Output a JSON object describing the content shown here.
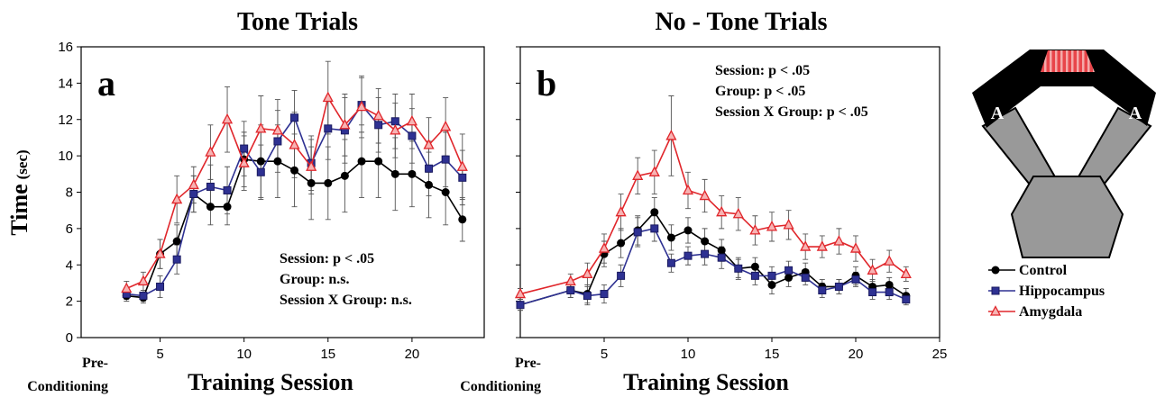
{
  "chart_data": [
    {
      "type": "line",
      "title": "Tone Trials",
      "letter": "a",
      "ylabel": "Time",
      "ylabel_unit": "(sec)",
      "xlabel": "Training Session",
      "x_start_label": [
        "Pre-",
        "Conditioning"
      ],
      "annotations": [
        "Session: p < .05",
        "Group: n.s.",
        "Session X Group: n.s."
      ],
      "xlim": [
        0.3,
        24.3
      ],
      "xticks": [
        5,
        10,
        15,
        20
      ],
      "ylim": [
        0,
        16
      ],
      "yticks": [
        0,
        2,
        4,
        6,
        8,
        10,
        12,
        14,
        16
      ],
      "ytick_labels": true,
      "x": [
        3,
        4,
        5,
        6,
        7,
        8,
        9,
        10,
        11,
        12,
        13,
        14,
        15,
        16,
        17,
        18,
        19,
        20,
        21,
        22,
        23
      ],
      "series": [
        {
          "name": "Control",
          "color": "#000000",
          "marker": "circle",
          "values": [
            2.3,
            2.2,
            4.6,
            5.3,
            7.9,
            7.2,
            7.2,
            9.8,
            9.7,
            9.7,
            9.2,
            8.5,
            8.5,
            8.9,
            9.7,
            9.7,
            9.0,
            9.0,
            8.4,
            8.0,
            6.5
          ],
          "errors": [
            0.3,
            0.3,
            0.8,
            0.9,
            1.0,
            1.0,
            1.0,
            1.5,
            2.0,
            2.0,
            2.0,
            2.0,
            2.0,
            2.0,
            2.0,
            2.0,
            2.0,
            1.8,
            1.8,
            1.8,
            1.2
          ]
        },
        {
          "name": "Hippocampus",
          "color": "#2e3192",
          "marker": "square",
          "values": [
            2.4,
            2.3,
            2.8,
            4.3,
            7.9,
            8.3,
            8.1,
            10.4,
            9.1,
            10.8,
            12.1,
            9.6,
            11.5,
            11.4,
            12.8,
            11.7,
            11.9,
            11.1,
            9.3,
            9.8,
            8.8
          ],
          "errors": [
            0.3,
            0.3,
            0.6,
            0.8,
            1.0,
            1.2,
            1.3,
            1.5,
            1.5,
            1.7,
            1.5,
            1.5,
            1.7,
            1.8,
            1.5,
            1.5,
            1.5,
            1.5,
            1.5,
            1.5,
            1.5
          ]
        },
        {
          "name": "Amygdala",
          "color": "#e0262b",
          "marker": "triangle",
          "values": [
            2.7,
            3.1,
            4.6,
            7.6,
            8.4,
            10.2,
            12.0,
            9.6,
            11.5,
            11.4,
            10.6,
            9.4,
            13.2,
            11.7,
            12.7,
            12.2,
            11.4,
            11.9,
            10.6,
            11.6,
            9.4
          ],
          "errors": [
            0.4,
            0.5,
            0.8,
            1.3,
            1.0,
            1.5,
            1.8,
            1.5,
            1.8,
            1.7,
            1.8,
            1.5,
            2.0,
            1.7,
            1.7,
            1.5,
            1.5,
            1.5,
            1.5,
            1.6,
            1.8
          ]
        }
      ]
    },
    {
      "type": "line",
      "title": "No - Tone Trials",
      "letter": "b",
      "xlabel": "Training Session",
      "x_start_label": [
        "Pre-",
        "Conditioning"
      ],
      "annotations": [
        "Session: p < .05",
        "Group: p < .05",
        "Session X Group: p < .05"
      ],
      "xlim": [
        0,
        25
      ],
      "xticks": [
        5,
        10,
        15,
        20,
        25
      ],
      "ylim": [
        0,
        16
      ],
      "yticks": [
        0,
        2,
        4,
        6,
        8,
        10,
        12,
        14,
        16
      ],
      "ytick_labels": false,
      "legend": true,
      "x": [
        0,
        3,
        4,
        5,
        6,
        7,
        8,
        9,
        10,
        11,
        12,
        13,
        14,
        15,
        16,
        17,
        18,
        19,
        20,
        21,
        22,
        23
      ],
      "series": [
        {
          "name": "Control",
          "color": "#000000",
          "marker": "circle",
          "values": [
            1.8,
            2.6,
            2.4,
            4.6,
            5.2,
            5.9,
            6.9,
            5.5,
            5.9,
            5.3,
            4.8,
            3.8,
            3.9,
            2.9,
            3.3,
            3.6,
            2.8,
            2.8,
            3.4,
            2.8,
            2.9,
            2.3
          ],
          "errors": [
            0.3,
            0.4,
            0.5,
            0.7,
            0.8,
            0.8,
            0.8,
            0.7,
            0.7,
            0.7,
            0.6,
            0.6,
            0.5,
            0.5,
            0.5,
            0.5,
            0.4,
            0.4,
            0.5,
            0.4,
            0.4,
            0.4
          ]
        },
        {
          "name": "Hippocampus",
          "color": "#2e3192",
          "marker": "square",
          "values": [
            1.8,
            2.6,
            2.3,
            2.4,
            3.4,
            5.8,
            6.0,
            4.1,
            4.5,
            4.6,
            4.4,
            3.8,
            3.4,
            3.4,
            3.7,
            3.3,
            2.6,
            2.8,
            3.2,
            2.5,
            2.5,
            2.1
          ],
          "errors": [
            0.3,
            0.4,
            0.5,
            0.5,
            0.6,
            0.8,
            0.7,
            0.5,
            0.5,
            0.6,
            0.6,
            0.5,
            0.5,
            0.5,
            0.5,
            0.4,
            0.4,
            0.4,
            0.4,
            0.4,
            0.4,
            0.3
          ]
        },
        {
          "name": "Amygdala",
          "color": "#e0262b",
          "marker": "triangle",
          "values": [
            2.4,
            3.1,
            3.5,
            4.9,
            6.9,
            8.9,
            9.1,
            11.1,
            8.1,
            7.8,
            6.9,
            6.8,
            5.9,
            6.1,
            6.2,
            5.0,
            5.0,
            5.3,
            4.9,
            3.7,
            4.2,
            3.5
          ],
          "errors": [
            0.3,
            0.4,
            0.6,
            0.8,
            1.0,
            1.0,
            1.2,
            2.2,
            1.0,
            0.9,
            0.9,
            0.9,
            0.8,
            0.8,
            0.8,
            0.7,
            0.6,
            0.7,
            0.7,
            0.6,
            0.6,
            0.4
          ]
        }
      ]
    }
  ],
  "maze": {
    "labels": [
      "A",
      "A"
    ]
  }
}
